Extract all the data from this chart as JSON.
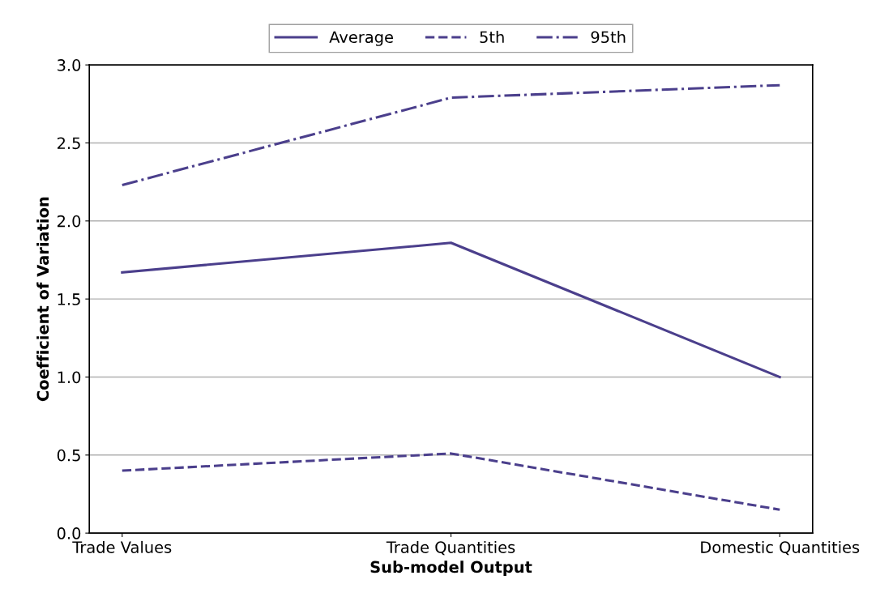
{
  "chart_data": {
    "type": "line",
    "xlabel": "Sub-model Output",
    "ylabel": "Coefficient of Variation",
    "categories": [
      "Trade Values",
      "Trade Quantities",
      "Domestic Quantities"
    ],
    "series": [
      {
        "name": "Average",
        "color": "#4b3f8c",
        "line_style": "solid",
        "values": [
          1.67,
          1.86,
          1.0
        ]
      },
      {
        "name": "5th",
        "color": "#4b3f8c",
        "line_style": "dashed",
        "values": [
          0.4,
          0.51,
          0.15
        ]
      },
      {
        "name": "95th",
        "color": "#4b3f8c",
        "line_style": "dashdot",
        "values": [
          2.23,
          2.79,
          2.87
        ]
      }
    ],
    "ylim": [
      0,
      3.0
    ],
    "yticks": [
      {
        "value": 0,
        "label": "0.0"
      },
      {
        "value": 0.5,
        "label": "0.5"
      },
      {
        "value": 1.0,
        "label": "1.0"
      },
      {
        "value": 1.5,
        "label": "1.5"
      },
      {
        "value": 2.0,
        "label": "2.0"
      },
      {
        "value": 2.5,
        "label": "2.5"
      },
      {
        "value": 3.0,
        "label": "3.0"
      }
    ],
    "grid": "y",
    "legend": "top",
    "marker": "none"
  }
}
